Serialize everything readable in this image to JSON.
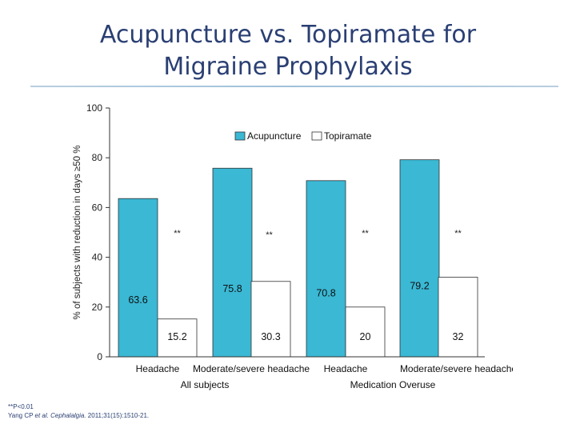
{
  "slide": {
    "title_line1": "Acupuncture vs. Topiramate for",
    "title_line2": "Migraine Prophylaxis",
    "footnote": "**P<0.01",
    "citation_prefix": "Yang CP ",
    "citation_etal": "et al.",
    "citation_journal": "Cephalalgia.",
    "citation_suffix": " 2011;31(15):1510-21."
  },
  "chart_data": {
    "type": "bar",
    "ylabel": "% of subjects with reduction in days ≥50 %",
    "ylim": [
      0,
      100
    ],
    "yticks": [
      0,
      20,
      40,
      60,
      80,
      100
    ],
    "categories": [
      "Headache",
      "Moderate/severe headache",
      "Headache",
      "Moderate/severe headache"
    ],
    "groups": [
      {
        "label": "All subjects",
        "categories": [
          0,
          1
        ]
      },
      {
        "label": "Medication Overuse",
        "categories": [
          2,
          3
        ]
      }
    ],
    "series": [
      {
        "name": "Acupuncture",
        "values": [
          63.6,
          75.8,
          70.8,
          79.2
        ],
        "value_labels": [
          "63.6",
          "75.8",
          "70.8",
          "79.2"
        ],
        "color": "#3ab8d4"
      },
      {
        "name": "Topiramate",
        "values": [
          15.2,
          30.3,
          20,
          32
        ],
        "value_labels": [
          "15.2",
          "30.3",
          "20",
          "32"
        ],
        "color": "#ffffff"
      }
    ],
    "significance_marks": [
      "**",
      "**",
      "**",
      "**"
    ],
    "legend_position": "top-right",
    "grid": false
  }
}
